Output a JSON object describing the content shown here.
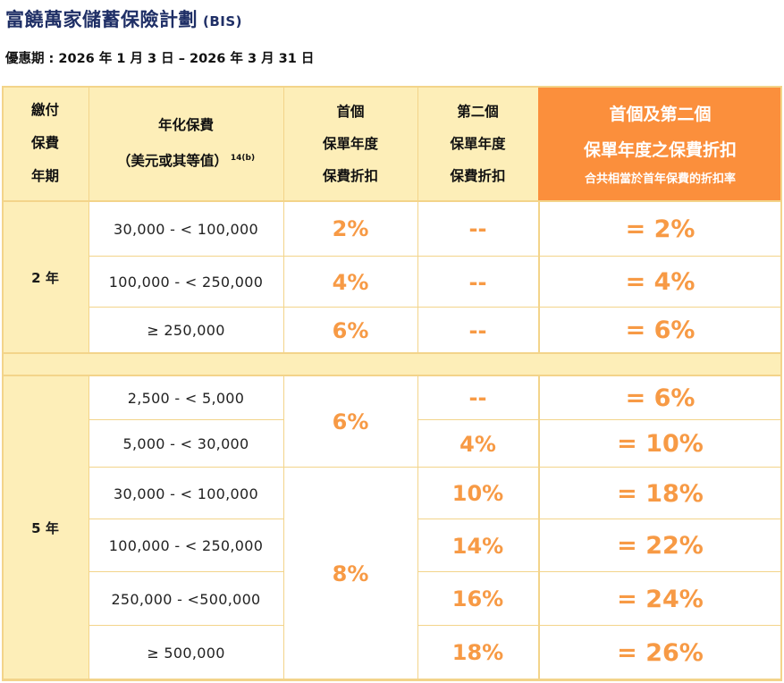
{
  "title": "富饒萬家儲蓄保險計劃",
  "title_suffix": "(BIS)",
  "period": "優惠期 : 2026 年 1 月 3 日 – 2026 年 3 月 31 日",
  "colors": {
    "header_bg": "#fdeeb8",
    "accent_header": "#fb8f3c",
    "percent_text": "#f79a45",
    "grid": "#f3d48a",
    "title": "#1f2f66"
  },
  "headers": {
    "term": [
      "繳付",
      "保費",
      "年期"
    ],
    "premium": [
      "年化保費",
      "（美元或其等值）"
    ],
    "premium_note": "14(b)",
    "first": [
      "首個",
      "保單年度",
      "保費折扣"
    ],
    "second": [
      "第二個",
      "保單年度",
      "保費折扣"
    ],
    "combined": [
      "首個及第二個",
      "保單年度之保費折扣"
    ],
    "combined_note": "合共相當於首年保費的折扣率"
  },
  "groups": [
    {
      "term": "2 年",
      "rows": [
        {
          "range": "30,000 - < 100,000",
          "first": "2%",
          "second": "--",
          "total": "= 2%"
        },
        {
          "range": "100,000 - < 250,000",
          "first": "4%",
          "second": "--",
          "total": "= 4%"
        },
        {
          "range": "≥ 250,000",
          "first": "6%",
          "second": "--",
          "total": "= 6%"
        }
      ]
    },
    {
      "term": "5 年",
      "first_merged": [
        "6%",
        "8%"
      ],
      "rows": [
        {
          "range": "2,500 - < 5,000",
          "second": "--",
          "total": "= 6%"
        },
        {
          "range": "5,000 - < 30,000",
          "second": "4%",
          "total": "= 10%"
        },
        {
          "range": "30,000 - < 100,000",
          "second": "10%",
          "total": "= 18%"
        },
        {
          "range": "100,000 - < 250,000",
          "second": "14%",
          "total": "= 22%"
        },
        {
          "range": "250,000 - <500,000",
          "second": "16%",
          "total": "= 24%"
        },
        {
          "range": "≥ 500,000",
          "second": "18%",
          "total": "= 26%"
        }
      ]
    }
  ]
}
